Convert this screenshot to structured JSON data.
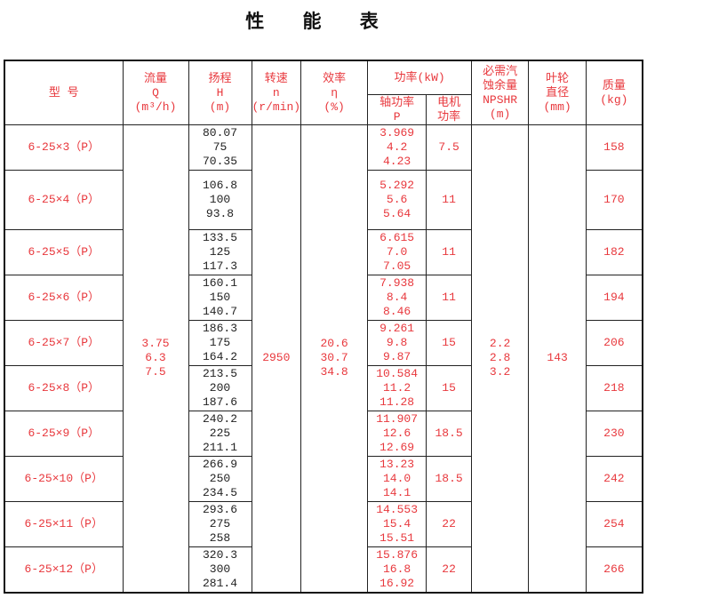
{
  "title": "性 能 表",
  "header": {
    "model": "型  号",
    "flow": "流量\nQ\n(m³/h)",
    "head": "扬程\nH\n(m)",
    "speed": "转速\nn\n(r/min)",
    "efficiency": "效率\nη\n(%)",
    "power": "功率(kW)",
    "shaft_power": "轴功率\nP",
    "motor_power": "电机\n功率",
    "npshr": "必需汽\n蚀余量\nNPSHR\n(m)",
    "impeller": "叶轮\n直径\n(mm)",
    "mass": "质量\n(kg)"
  },
  "shared": {
    "flow": "3.75\n6.3\n7.5",
    "speed": "2950",
    "efficiency": "20.6\n30.7\n34.8",
    "npshr": "2.2\n2.8\n3.2",
    "impeller": "143"
  },
  "rows": [
    {
      "model": "6-25×3（P）",
      "head": "80.07\n75\n70.35",
      "shaft": "3.969\n4.2\n4.23",
      "motor": "7.5",
      "mass": "158"
    },
    {
      "model": "6-25×4（P）",
      "head": "106.8\n100\n93.8",
      "shaft": "5.292\n5.6\n5.64",
      "motor": "11",
      "mass": "170"
    },
    {
      "model": "6-25×5（P）",
      "head": "133.5\n125\n117.3",
      "shaft": "6.615\n7.0\n7.05",
      "motor": "11",
      "mass": "182"
    },
    {
      "model": "6-25×6（P）",
      "head": "160.1\n150\n140.7",
      "shaft": "7.938\n8.4\n8.46",
      "motor": "11",
      "mass": "194"
    },
    {
      "model": "6-25×7（P）",
      "head": "186.3\n175\n164.2",
      "shaft": "9.261\n9.8\n9.87",
      "motor": "15",
      "mass": "206"
    },
    {
      "model": "6-25×8（P）",
      "head": "213.5\n200\n187.6",
      "shaft": "10.584\n11.2\n11.28",
      "motor": "15",
      "mass": "218"
    },
    {
      "model": "6-25×9（P）",
      "head": "240.2\n225\n211.1",
      "shaft": "11.907\n12.6\n12.69",
      "motor": "18.5",
      "mass": "230"
    },
    {
      "model": "6-25×10（P）",
      "head": "266.9\n250\n234.5",
      "shaft": "13.23\n14.0\n14.1",
      "motor": "18.5",
      "mass": "242"
    },
    {
      "model": "6-25×11（P）",
      "head": "293.6\n275\n258",
      "shaft": "14.553\n15.4\n15.51",
      "motor": "22",
      "mass": "254"
    },
    {
      "model": "6-25×12（P）",
      "head": "320.3\n300\n281.4",
      "shaft": "15.876\n16.8\n16.92",
      "motor": "22",
      "mass": "266"
    }
  ],
  "colors": {
    "data_text": "#e8383d",
    "head_text": "#222222",
    "border": "#111111"
  }
}
